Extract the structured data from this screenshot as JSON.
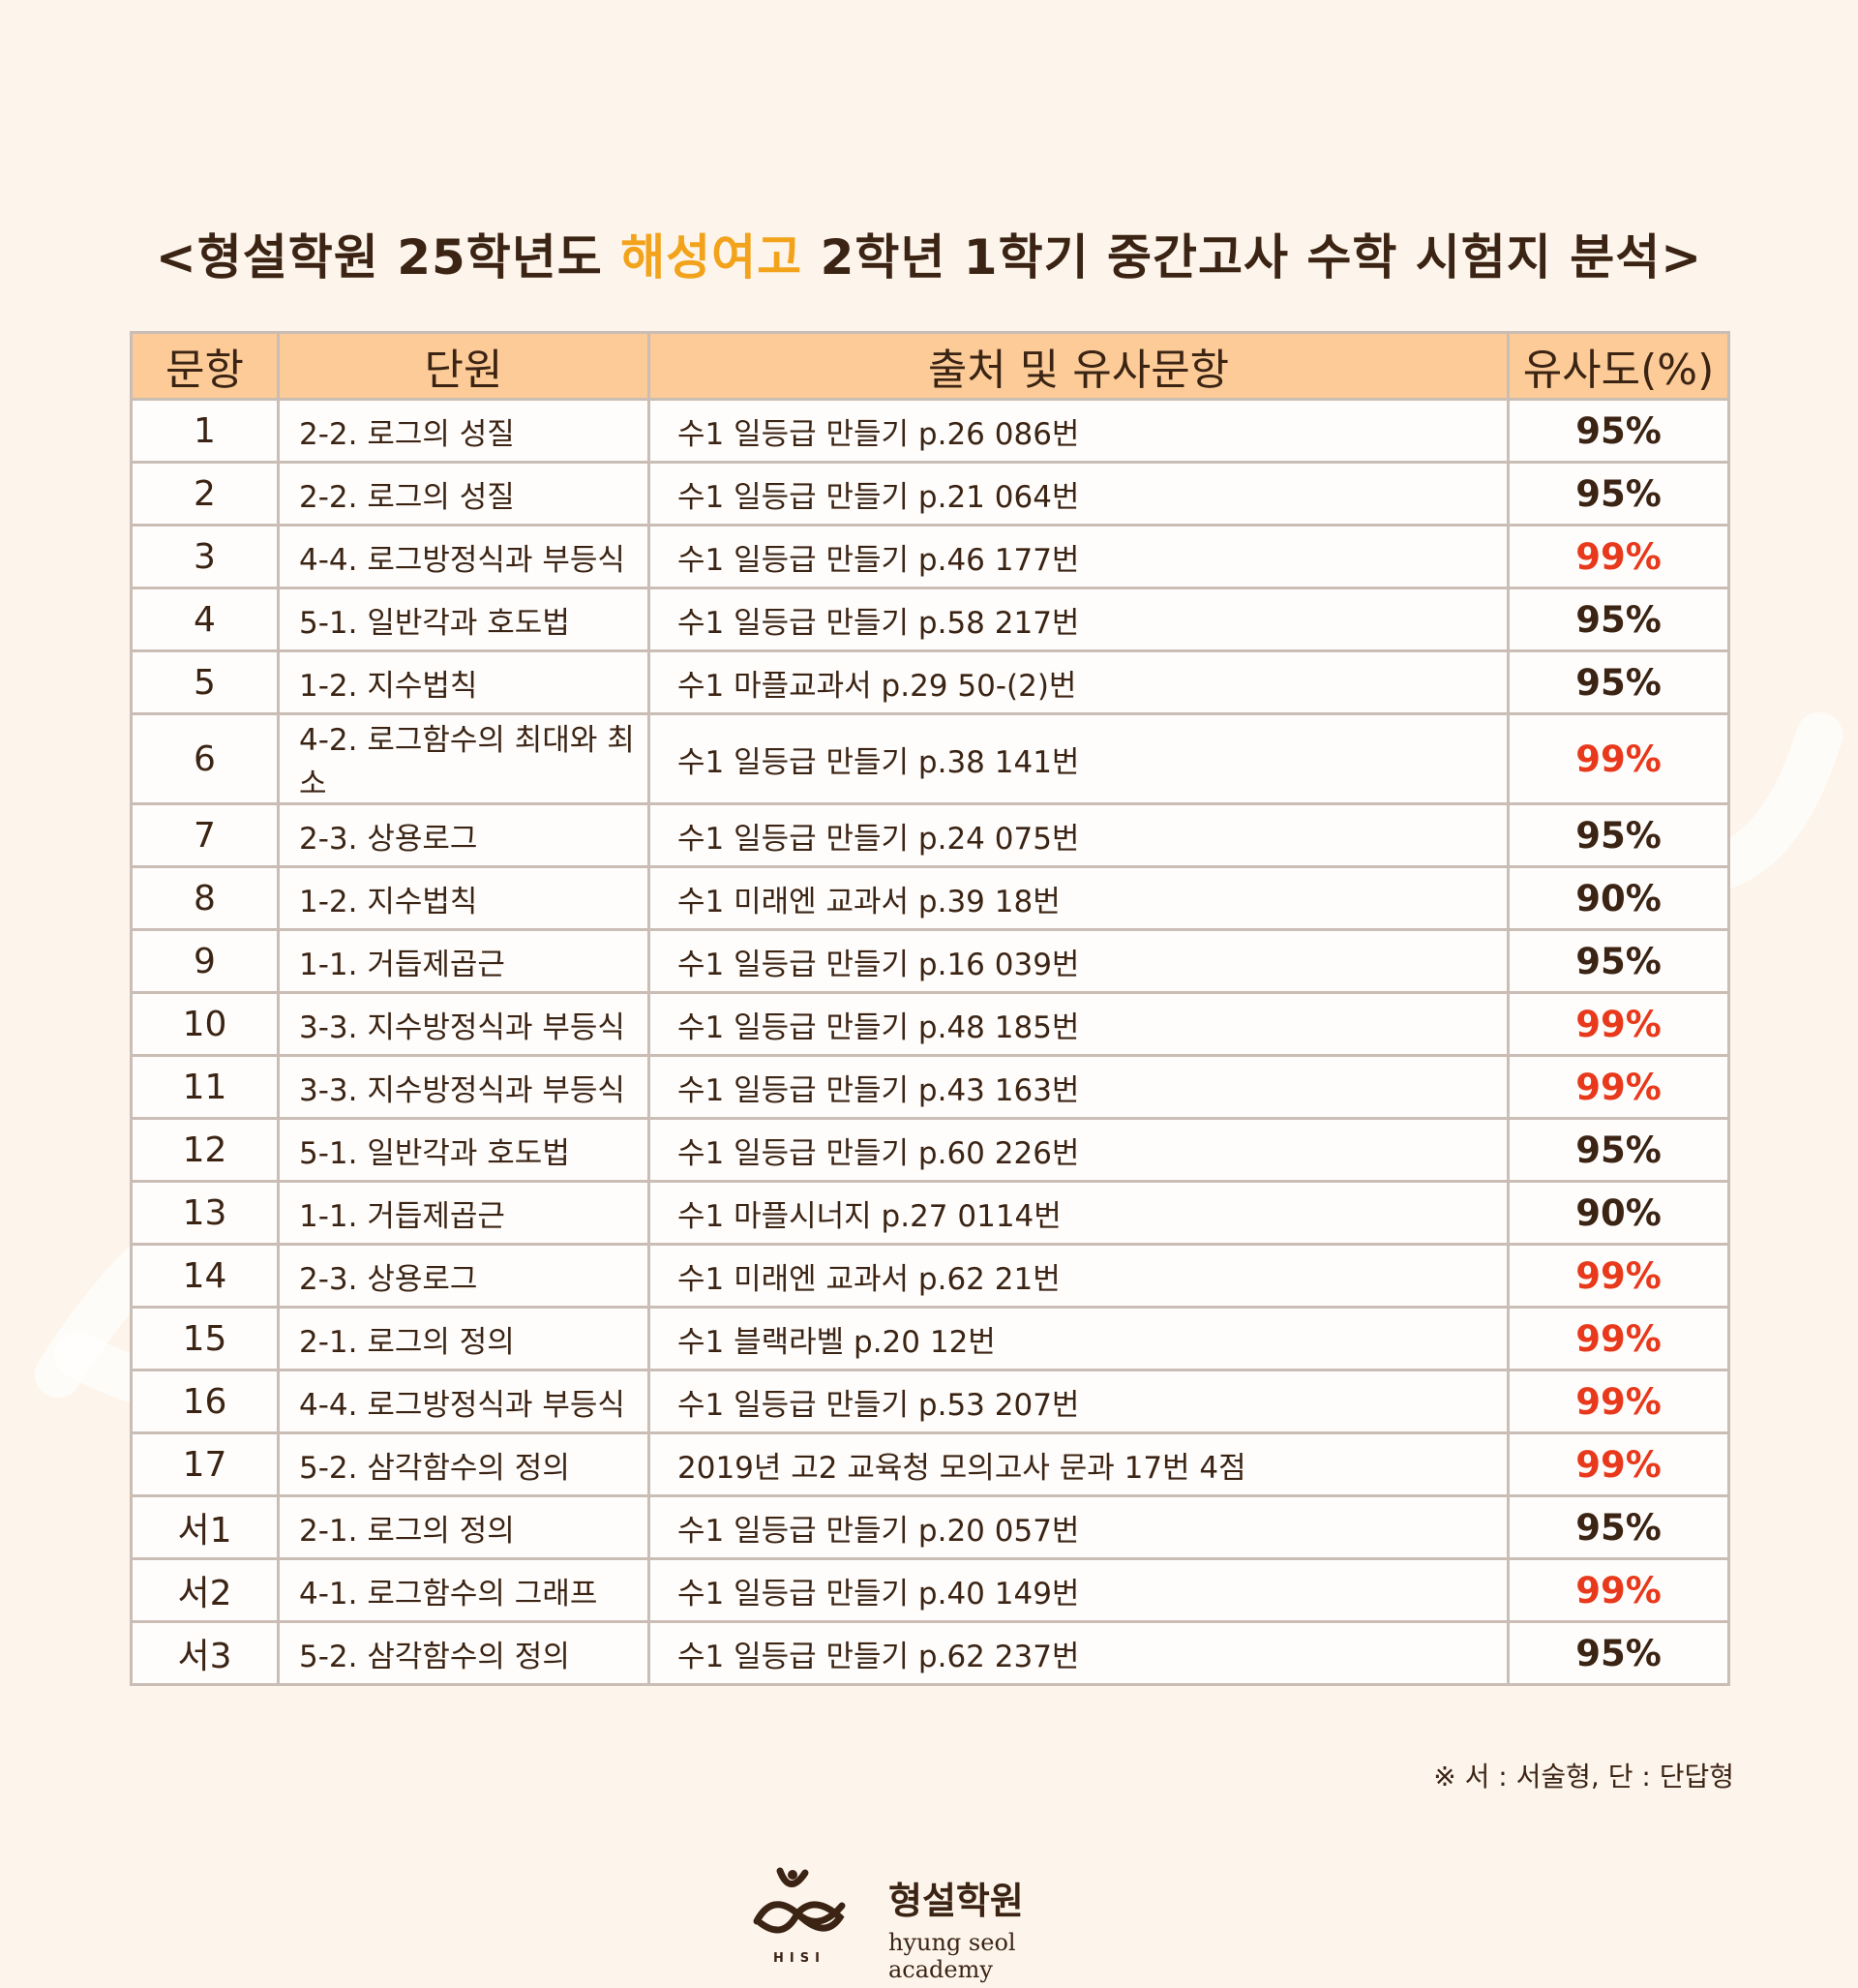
{
  "title": {
    "prefix": "<형설학원 25학년도 ",
    "highlight": "해성여고",
    "suffix": " 2학년 1학기 중간고사 수학 시험지 분석>"
  },
  "colors": {
    "background": "#fdf5ec",
    "header_fill": "#fccb97",
    "title_highlight": "#f2a31b",
    "high_similarity": "#e8391c",
    "text": "#3b2414"
  },
  "table": {
    "headers": [
      "문항",
      "단원",
      "출처 및 유사문항",
      "유사도(%)"
    ],
    "rows": [
      {
        "num": "1",
        "unit": "2-2. 로그의 성질",
        "source": "수1 일등급 만들기 p.26 086번",
        "similarity": "95%",
        "high": false
      },
      {
        "num": "2",
        "unit": "2-2. 로그의 성질",
        "source": "수1 일등급 만들기 p.21 064번",
        "similarity": "95%",
        "high": false
      },
      {
        "num": "3",
        "unit": "4-4. 로그방정식과 부등식",
        "source": "수1 일등급 만들기 p.46 177번",
        "similarity": "99%",
        "high": true
      },
      {
        "num": "4",
        "unit": "5-1. 일반각과 호도법",
        "source": "수1 일등급 만들기 p.58 217번",
        "similarity": "95%",
        "high": false
      },
      {
        "num": "5",
        "unit": "1-2. 지수법칙",
        "source": "수1 마플교과서 p.29 50-(2)번",
        "similarity": "95%",
        "high": false
      },
      {
        "num": "6",
        "unit": "4-2. 로그함수의 최대와 최소",
        "source": "수1 일등급 만들기 p.38 141번",
        "similarity": "99%",
        "high": true
      },
      {
        "num": "7",
        "unit": "2-3. 상용로그",
        "source": "수1 일등급 만들기 p.24 075번",
        "similarity": "95%",
        "high": false
      },
      {
        "num": "8",
        "unit": "1-2. 지수법칙",
        "source": "수1 미래엔 교과서 p.39 18번",
        "similarity": "90%",
        "high": false
      },
      {
        "num": "9",
        "unit": "1-1. 거듭제곱근",
        "source": "수1 일등급 만들기 p.16 039번",
        "similarity": "95%",
        "high": false
      },
      {
        "num": "10",
        "unit": "3-3. 지수방정식과 부등식",
        "source": "수1 일등급 만들기 p.48 185번",
        "similarity": "99%",
        "high": true
      },
      {
        "num": "11",
        "unit": "3-3. 지수방정식과 부등식",
        "source": "수1 일등급 만들기 p.43 163번",
        "similarity": "99%",
        "high": true
      },
      {
        "num": "12",
        "unit": "5-1. 일반각과 호도법",
        "source": "수1 일등급 만들기 p.60 226번",
        "similarity": "95%",
        "high": false
      },
      {
        "num": "13",
        "unit": "1-1. 거듭제곱근",
        "source": "수1 마플시너지 p.27 0114번",
        "similarity": "90%",
        "high": false
      },
      {
        "num": "14",
        "unit": "2-3. 상용로그",
        "source": "수1 미래엔 교과서 p.62 21번",
        "similarity": "99%",
        "high": true
      },
      {
        "num": "15",
        "unit": "2-1. 로그의 정의",
        "source": "수1 블랙라벨 p.20 12번",
        "similarity": "99%",
        "high": true
      },
      {
        "num": "16",
        "unit": "4-4. 로그방정식과 부등식",
        "source": "수1 일등급 만들기 p.53 207번",
        "similarity": "99%",
        "high": true
      },
      {
        "num": "17",
        "unit": "5-2. 삼각함수의 정의",
        "source": "2019년 고2 교육청 모의고사 문과 17번 4점",
        "similarity": "99%",
        "high": true
      },
      {
        "num": "서1",
        "unit": "2-1. 로그의 정의",
        "source": "수1 일등급 만들기 p.20 057번",
        "similarity": "95%",
        "high": false
      },
      {
        "num": "서2",
        "unit": "4-1. 로그함수의 그래프",
        "source": "수1 일등급 만들기 p.40 149번",
        "similarity": "99%",
        "high": true
      },
      {
        "num": "서3",
        "unit": "5-2. 삼각함수의 정의",
        "source": "수1 일등급 만들기 p.62 237번",
        "similarity": "95%",
        "high": false
      }
    ]
  },
  "footnote": "※ 서 : 서술형, 단 : 단답형",
  "logo": {
    "name": "형설학원",
    "subtitle": "hyung seol academy",
    "mark_letters": "HISI",
    "icon": "academy-logo-icon"
  }
}
